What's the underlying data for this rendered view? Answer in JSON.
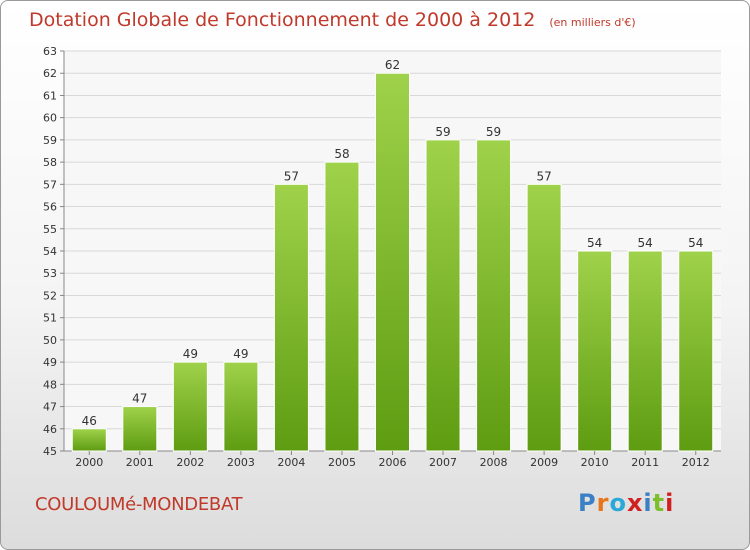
{
  "title": "Dotation Globale de Fonctionnement de 2000 à 2012",
  "unit_note": "(en milliers d'€)",
  "commune": "COULOUMé-MONDEBAT",
  "logo": {
    "text": "Proxiti",
    "colors": [
      "#3b7fc4",
      "#e8751a",
      "#2aa8d8",
      "#d02020",
      "#3b7fc4",
      "#7cbf2a",
      "#d02020"
    ]
  },
  "colors": {
    "bar_top": "#9fd24a",
    "bar_bottom": "#5e9c12",
    "title": "#c0392b",
    "grid": "#d8d8d8"
  },
  "chart_data": {
    "type": "bar",
    "categories": [
      "2000",
      "2001",
      "2002",
      "2003",
      "2004",
      "2005",
      "2006",
      "2007",
      "2008",
      "2009",
      "2010",
      "2011",
      "2012"
    ],
    "values": [
      46,
      47,
      49,
      49,
      57,
      58,
      62,
      59,
      59,
      57,
      54,
      54,
      54
    ],
    "ylim": [
      45,
      63
    ],
    "yticks": [
      45,
      46,
      47,
      48,
      49,
      50,
      51,
      52,
      53,
      54,
      55,
      56,
      57,
      58,
      59,
      60,
      61,
      62,
      63
    ],
    "grid": true,
    "data_labels": true
  }
}
